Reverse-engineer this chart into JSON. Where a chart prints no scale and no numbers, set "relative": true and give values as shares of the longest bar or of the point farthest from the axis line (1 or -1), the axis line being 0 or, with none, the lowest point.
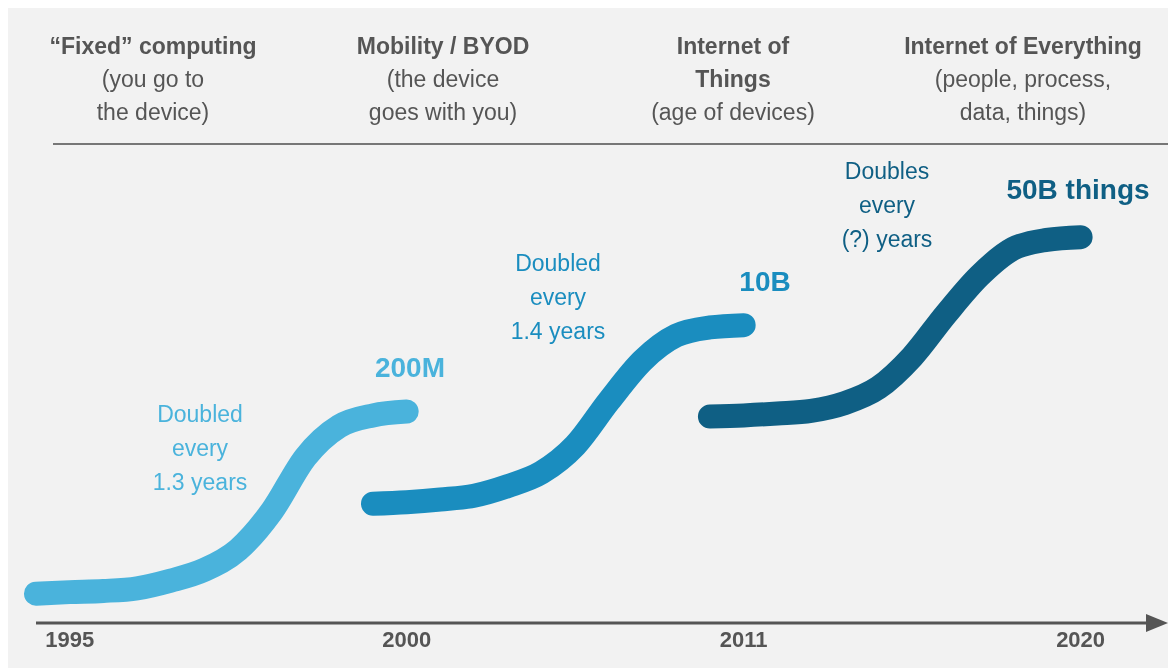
{
  "chart_data": {
    "type": "line",
    "relative": true,
    "categories": [
      null,
      "1995",
      null,
      null,
      null,
      null,
      null,
      null,
      null,
      null,
      null,
      "2000",
      null,
      null,
      null,
      null,
      null,
      null,
      null,
      null,
      null,
      "2011",
      null,
      null,
      null,
      null,
      null,
      null,
      null,
      null,
      null,
      "2020",
      null,
      null
    ],
    "series": [
      {
        "color": "#4ab3dc",
        "values": [
          0.076,
          0.08,
          0.083,
          0.09,
          0.11,
          0.138,
          0.19,
          0.29,
          0.43,
          0.51,
          0.538,
          0.548,
          null,
          null,
          null,
          null,
          null,
          null,
          null,
          null,
          null,
          null,
          null,
          null,
          null,
          null,
          null,
          null,
          null,
          null,
          null,
          null,
          null,
          null
        ]
      },
      {
        "color": "#1a8dbf",
        "values": [
          null,
          null,
          null,
          null,
          null,
          null,
          null,
          null,
          null,
          null,
          0.309,
          0.313,
          0.32,
          0.33,
          0.355,
          0.39,
          0.46,
          0.575,
          0.68,
          0.745,
          0.766,
          0.772,
          null,
          null,
          null,
          null,
          null,
          null,
          null,
          null,
          null,
          null,
          null,
          null
        ]
      },
      {
        "color": "#0f5f84",
        "values": [
          null,
          null,
          null,
          null,
          null,
          null,
          null,
          null,
          null,
          null,
          null,
          null,
          null,
          null,
          null,
          null,
          null,
          null,
          null,
          null,
          0.535,
          0.538,
          0.543,
          0.55,
          0.57,
          0.61,
          0.69,
          0.8,
          0.9,
          0.97,
          0.993,
          1.0,
          null,
          null
        ]
      }
    ],
    "annotations": [
      "“Fixed” computing\n(you go to\nthe device)",
      "Mobility / BYOD\n(the device\ngoes with you)",
      "Internet of\nThings\n(age of devices)",
      "Internet of Everything\n(people, process,\ndata, things)",
      "Doubled\nevery\n1.3 years",
      "200M",
      "Doubled\nevery\n1.4 years",
      "10B",
      "Doubles\nevery\n(?) years",
      "50B things"
    ]
  }
}
